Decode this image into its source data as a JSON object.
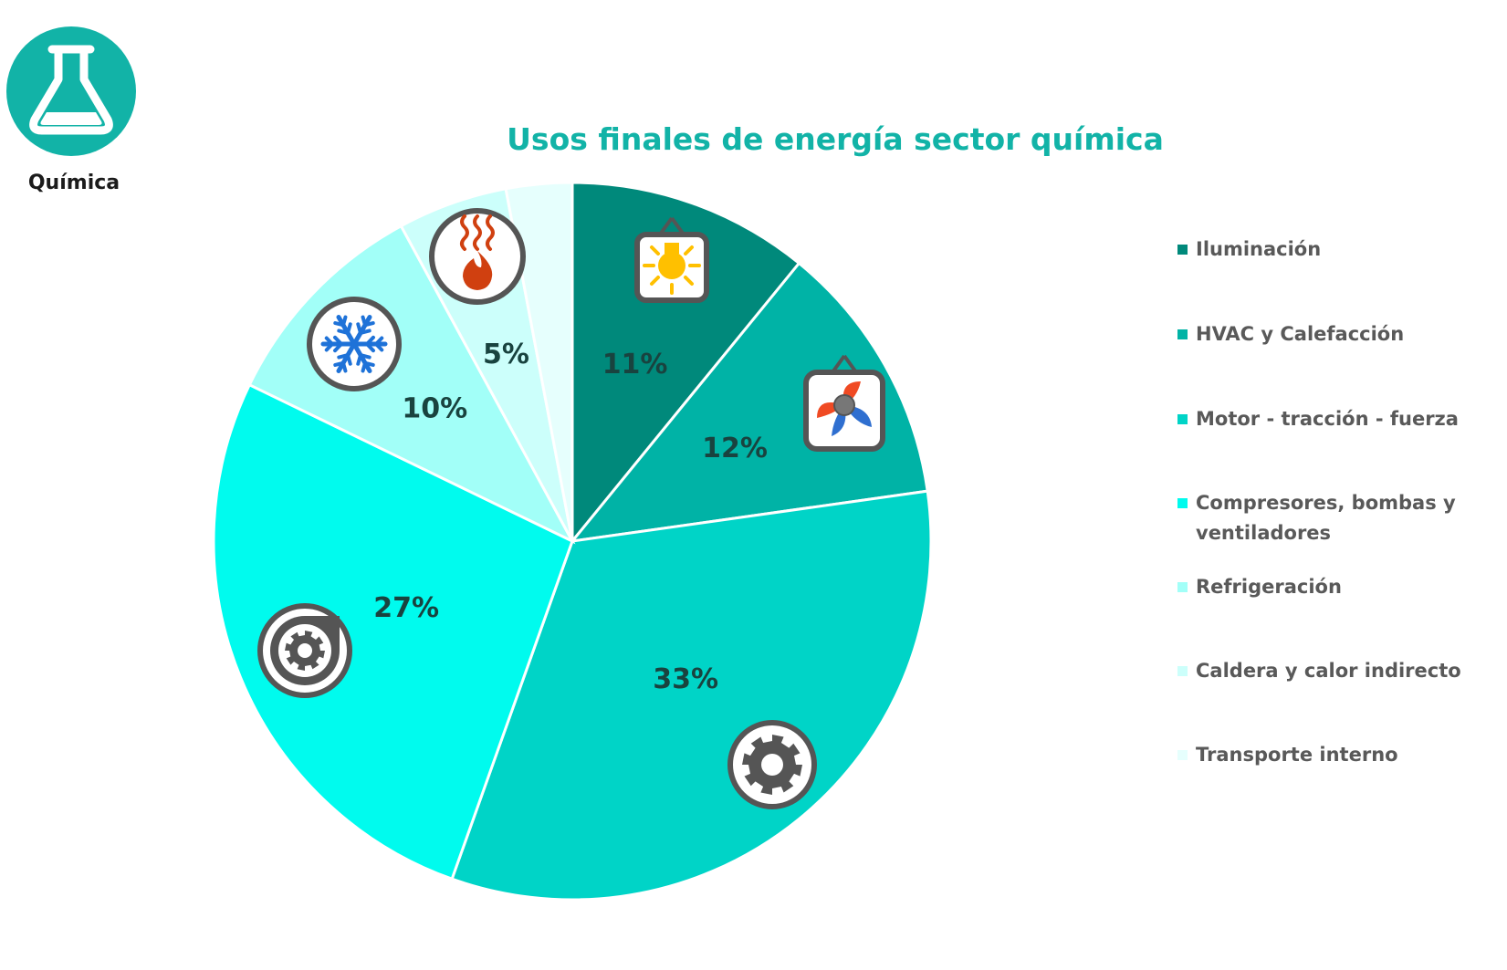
{
  "sector": {
    "label": "Química",
    "icon": "flask-icon",
    "color": "#12b3a7"
  },
  "chart_data": {
    "type": "pie",
    "title": "Usos finales de energía sector química",
    "slices": [
      {
        "name": "Iluminación",
        "value": 11,
        "label": "11%",
        "color": "#00897b",
        "icon": "light-bulb-icon"
      },
      {
        "name": "HVAC y Calefacción",
        "value": 12,
        "label": "12%",
        "color": "#00b3a6",
        "icon": "fan-icon"
      },
      {
        "name": "Motor - tracción - fuerza",
        "value": 33,
        "label": "33%",
        "color": "#00d4c7",
        "icon": "gear-icon"
      },
      {
        "name": "Compresores, bombas y ventiladores",
        "value": 27,
        "label": "27%",
        "color": "#00fbee",
        "icon": "pump-icon"
      },
      {
        "name": "Refrigeración",
        "value": 10,
        "label": "10%",
        "color": "#a2fff8",
        "icon": "snowflake-icon"
      },
      {
        "name": "Caldera y calor indirecto",
        "value": 5,
        "label": "5%",
        "color": "#ccfffb",
        "icon": "flame-icon"
      },
      {
        "name": "Transporte interno",
        "value": 3,
        "label": "",
        "color": "#e6fffd",
        "icon": ""
      }
    ],
    "legend_position": "right"
  }
}
